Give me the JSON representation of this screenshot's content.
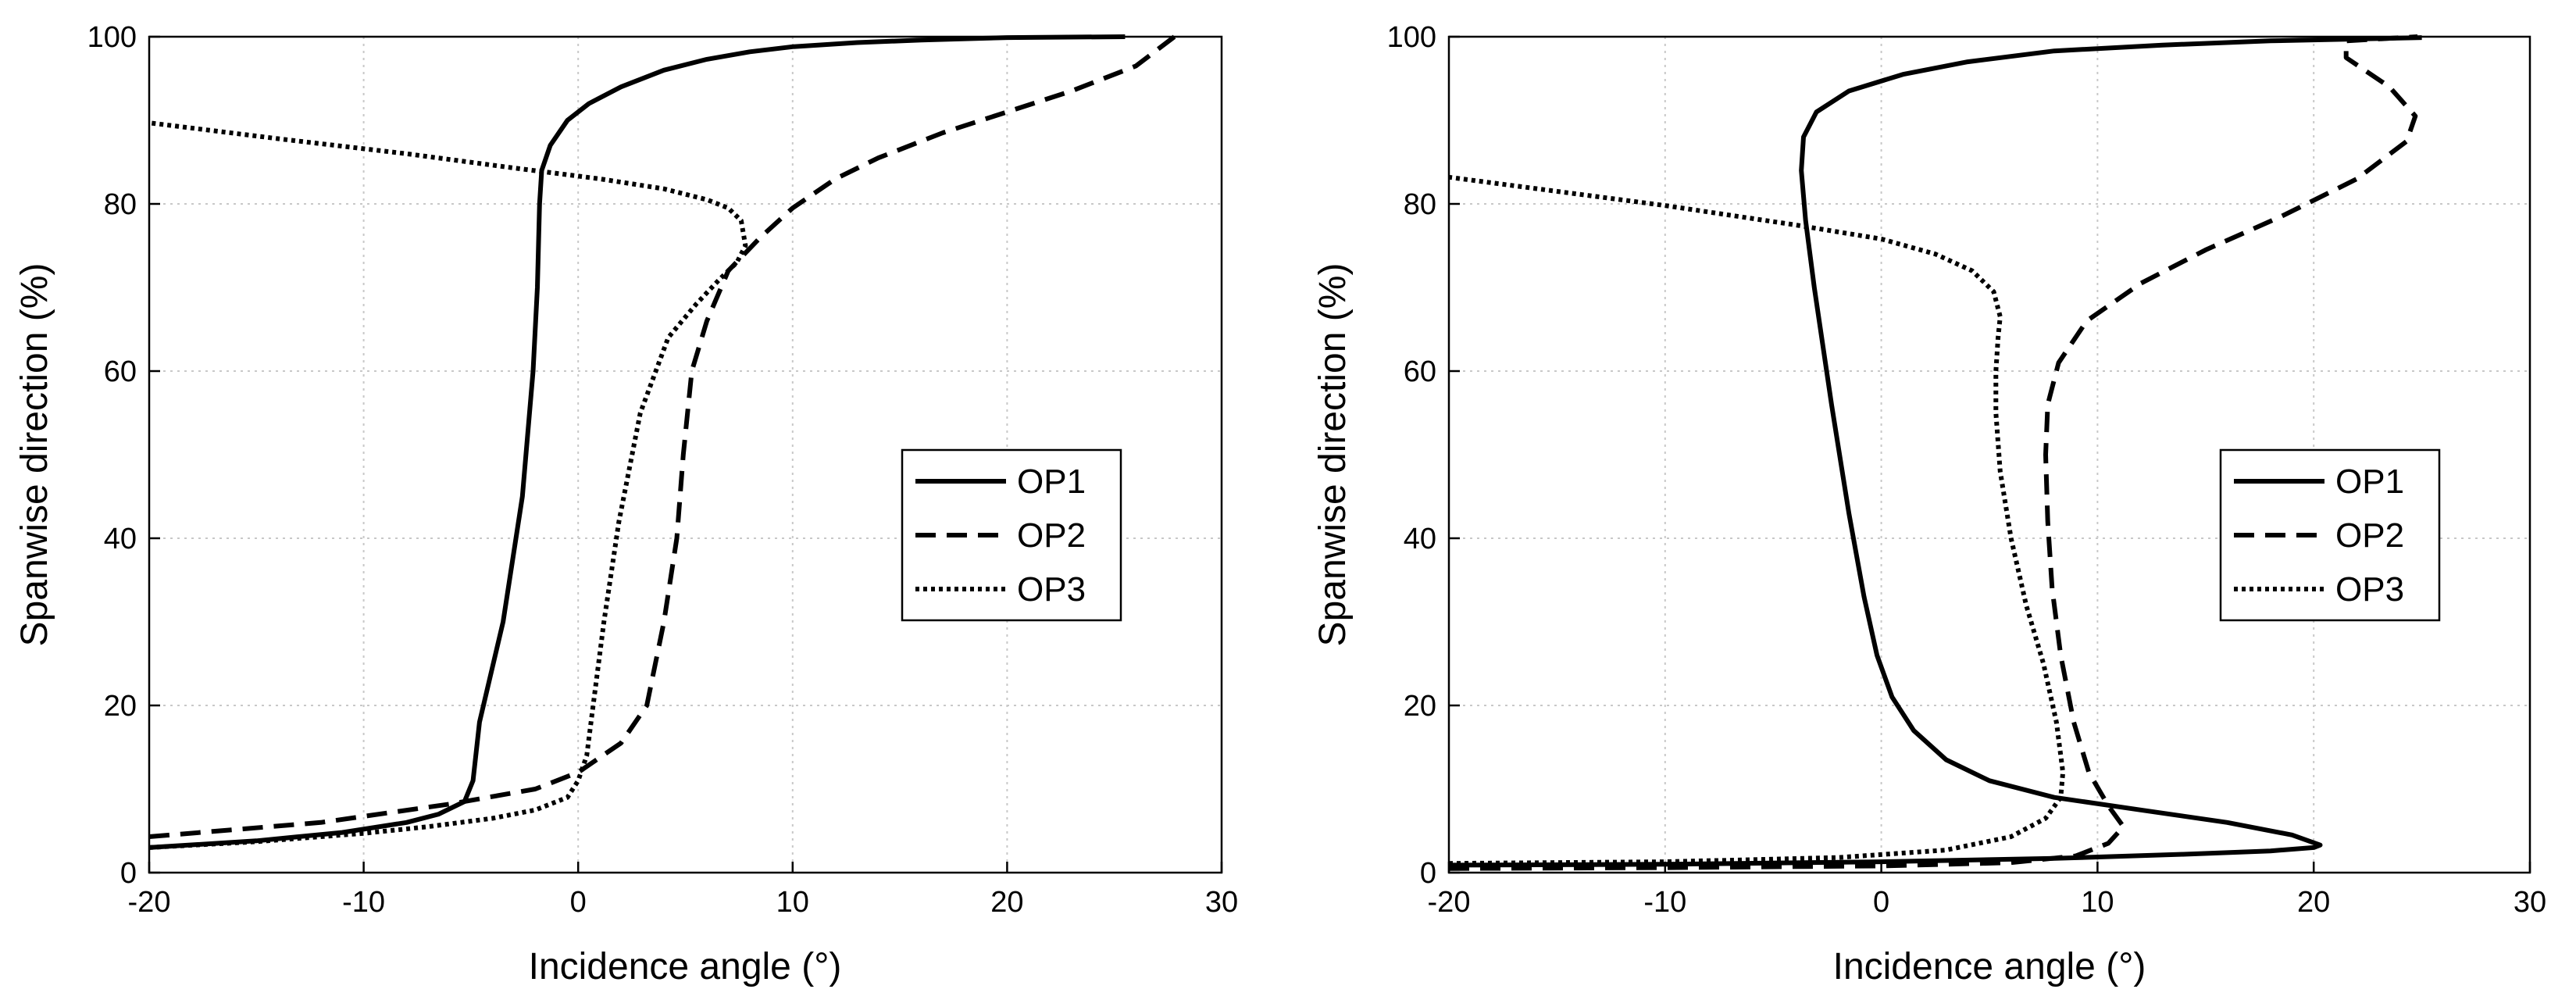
{
  "chart_data": [
    {
      "type": "line",
      "title": "",
      "xlabel": "Incidence angle (°)",
      "ylabel": "Spanwise direction (%)",
      "xlim": [
        -20,
        30
      ],
      "ylim": [
        0,
        100
      ],
      "xticks": [
        -20,
        -10,
        0,
        10,
        20,
        30
      ],
      "yticks": [
        0,
        20,
        40,
        60,
        80,
        100
      ],
      "xtick_labels": [
        "-20",
        "-10",
        "0",
        "10",
        "20",
        "30"
      ],
      "ytick_labels": [
        "0",
        "20",
        "40",
        "60",
        "80",
        "100"
      ],
      "grid": true,
      "legend_position": "center-right",
      "series": [
        {
          "name": "OP1",
          "style": "solid",
          "x": [
            -20,
            -15,
            -11,
            -8,
            -6.5,
            -5.3,
            -4.9,
            -4.6,
            -3.5,
            -2.6,
            -2.1,
            -1.9,
            -1.85,
            -1.8,
            -1.7,
            -1.3,
            -0.5,
            0.5,
            2,
            4,
            6,
            8,
            10,
            13,
            16,
            20,
            25.5
          ],
          "y": [
            3,
            3.8,
            4.8,
            6,
            7,
            8.5,
            11,
            18,
            30,
            45,
            60,
            70,
            75,
            80,
            84,
            87,
            90,
            92,
            94,
            96,
            97.3,
            98.2,
            98.8,
            99.3,
            99.6,
            99.9,
            100
          ]
        },
        {
          "name": "OP2",
          "style": "dashed",
          "x": [
            -20,
            -12,
            -6,
            -2,
            0,
            2,
            3.2,
            4,
            4.6,
            4.9,
            5.3,
            6,
            7,
            8.5,
            10,
            12,
            14,
            17,
            20,
            23,
            26,
            27.8
          ],
          "y": [
            4.3,
            6,
            8.2,
            10,
            12,
            15.5,
            20,
            30,
            40,
            50,
            60,
            66,
            72,
            76,
            79.5,
            83,
            85.5,
            88.5,
            91,
            93.5,
            96.5,
            100
          ]
        },
        {
          "name": "OP3",
          "style": "dotted",
          "x": [
            -20,
            -15,
            -10,
            -7,
            -4,
            -2,
            -0.5,
            0,
            0.4,
            0.7,
            1.2,
            1.9,
            2.9,
            4.2,
            5.5,
            6.6,
            7.4,
            7.8,
            7.6,
            7,
            6,
            4,
            1,
            -3,
            -8,
            -14,
            -20
          ],
          "y": [
            3,
            3.7,
            4.7,
            5.5,
            6.5,
            7.5,
            9,
            11,
            14,
            20,
            30,
            42,
            55,
            64,
            68,
            71,
            73,
            75,
            78,
            79.5,
            80.5,
            81.8,
            83,
            84.3,
            86,
            87.8,
            89.7
          ]
        }
      ]
    },
    {
      "type": "line",
      "title": "",
      "xlabel": "Incidence angle (°)",
      "ylabel": "Spanwise direction (%)",
      "xlim": [
        -20,
        30
      ],
      "ylim": [
        0,
        100
      ],
      "xticks": [
        -20,
        -10,
        0,
        10,
        20,
        30
      ],
      "yticks": [
        0,
        20,
        40,
        60,
        80,
        100
      ],
      "xtick_labels": [
        "-20",
        "-10",
        "0",
        "10",
        "20",
        "30"
      ],
      "ytick_labels": [
        "0",
        "20",
        "40",
        "60",
        "80",
        "100"
      ],
      "grid": true,
      "legend_position": "center-right",
      "series": [
        {
          "name": "OP1",
          "style": "solid",
          "x": [
            -20,
            -10,
            0,
            8,
            14,
            18,
            20,
            20.3,
            19,
            16,
            12,
            8,
            5,
            3,
            1.5,
            0.5,
            -0.2,
            -0.8,
            -1.5,
            -2.3,
            -3.1,
            -3.5,
            -3.7,
            -3.6,
            -3,
            -1.5,
            1,
            4,
            8,
            13,
            18,
            25
          ],
          "y": [
            0.9,
            1.0,
            1.3,
            1.7,
            2.2,
            2.6,
            3.0,
            3.3,
            4.5,
            6,
            7.5,
            9,
            11,
            13.5,
            17,
            21,
            26,
            33,
            43,
            56,
            70,
            78,
            84,
            88,
            91,
            93.5,
            95.5,
            97,
            98.3,
            99,
            99.5,
            99.9
          ]
        },
        {
          "name": "OP2",
          "style": "dashed",
          "x": [
            -20,
            -10,
            0,
            6,
            9,
            10.5,
            11.2,
            10.5,
            9.6,
            8.9,
            8.3,
            7.9,
            7.7,
            7.6,
            7.7,
            8.2,
            9.5,
            12,
            15,
            18.5,
            22,
            24.3,
            24.7,
            23.5,
            21.5,
            21.5,
            24.8
          ],
          "y": [
            0.5,
            0.6,
            0.8,
            1.2,
            2.0,
            3.5,
            5.5,
            8,
            12,
            18,
            26,
            34,
            42,
            50,
            56,
            61,
            66,
            70.5,
            74.5,
            78.5,
            83,
            87.5,
            90.5,
            94,
            97.5,
            99.5,
            100
          ]
        },
        {
          "name": "OP3",
          "style": "dotted",
          "x": [
            -20,
            -10,
            -2,
            3,
            6,
            7.6,
            8.3,
            8.4,
            8.1,
            7.5,
            6.7,
            6,
            5.5,
            5.3,
            5.3,
            5.4,
            5.5,
            5.2,
            4.2,
            2.5,
            0,
            -4,
            -10,
            -20
          ],
          "y": [
            1.1,
            1.3,
            1.8,
            2.7,
            4.3,
            6.5,
            9,
            12,
            18,
            25,
            32,
            40,
            48,
            55,
            60,
            64,
            66.5,
            69.5,
            72,
            74,
            75.8,
            77.5,
            79.8,
            83.2
          ]
        }
      ]
    }
  ]
}
